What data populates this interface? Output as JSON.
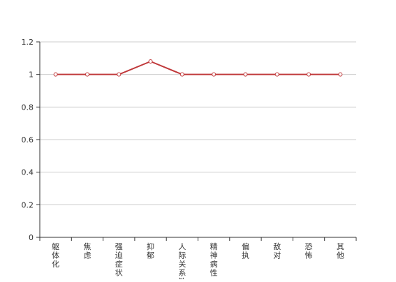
{
  "chart_data": {
    "type": "line",
    "categories": [
      "躯体化",
      "焦虑",
      "强迫症状",
      "抑郁",
      "人际关系敏感",
      "精神病性",
      "偏执",
      "敌对",
      "恐怖",
      "其他"
    ],
    "series": [
      {
        "values": [
          1,
          1,
          1,
          1.08,
          1,
          1,
          1,
          1,
          1,
          1
        ]
      }
    ],
    "ylim": [
      0,
      1.2
    ],
    "yticks": [
      "0",
      "0.2",
      "0.4",
      "0.6",
      "0.8",
      "1",
      "1.2"
    ],
    "grid": true,
    "legend": "none"
  },
  "colors": {
    "line": "#c0393b",
    "grid": "#cccccc",
    "axis": "#333333",
    "marker_fill": "#ffffff"
  }
}
